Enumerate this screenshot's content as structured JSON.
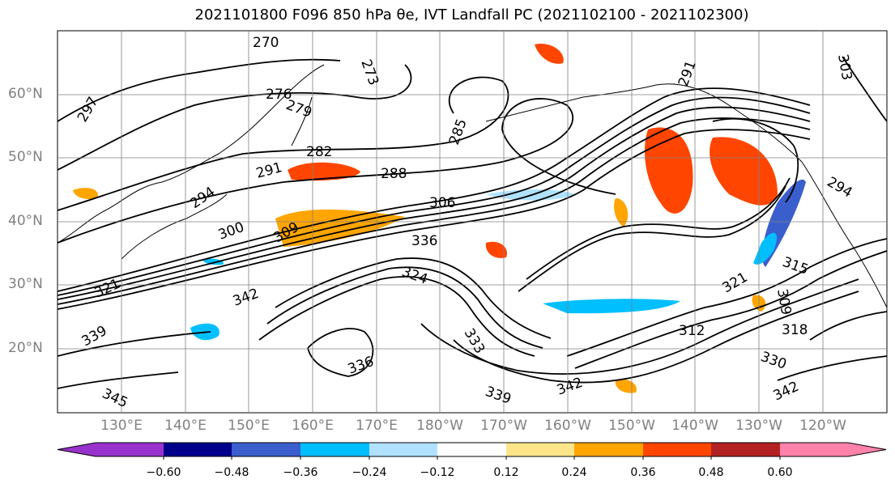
{
  "title": {
    "text": "2021101800 F096 850 hPa θe, IVT Landfall PC (2021102100 - 2021102300)"
  },
  "map": {
    "lat_labels": [
      "60°N",
      "50°N",
      "40°N",
      "30°N",
      "20°N"
    ],
    "lon_labels": [
      "130°E",
      "140°E",
      "150°E",
      "160°E",
      "170°E",
      "180°W",
      "170°W",
      "160°W",
      "150°W",
      "140°W",
      "130°W",
      "120°W"
    ],
    "contour_labels": [
      "270",
      "276",
      "279",
      "282",
      "288",
      "291",
      "294",
      "297",
      "300",
      "306",
      "309",
      "336",
      "324",
      "321",
      "342",
      "339",
      "333",
      "336",
      "339",
      "342",
      "345",
      "312",
      "315",
      "318",
      "321",
      "330",
      "342",
      "309",
      "303",
      "285",
      "273",
      "291",
      "294"
    ]
  },
  "colorbar": {
    "ticks": [
      "−0.60",
      "−0.48",
      "−0.36",
      "−0.24",
      "−0.12",
      "0.12",
      "0.24",
      "0.36",
      "0.48",
      "0.60"
    ],
    "colors": [
      "#9932cc",
      "#00008b",
      "#3a5fcd",
      "#00bfff",
      "#b0e2ff",
      "#ffffff",
      "#fde68a",
      "#ffa500",
      "#ff4500",
      "#b22222",
      "#ff82ab"
    ]
  },
  "colors": {
    "contour": "#000000",
    "grid": "#808080",
    "coast": "#000000"
  }
}
